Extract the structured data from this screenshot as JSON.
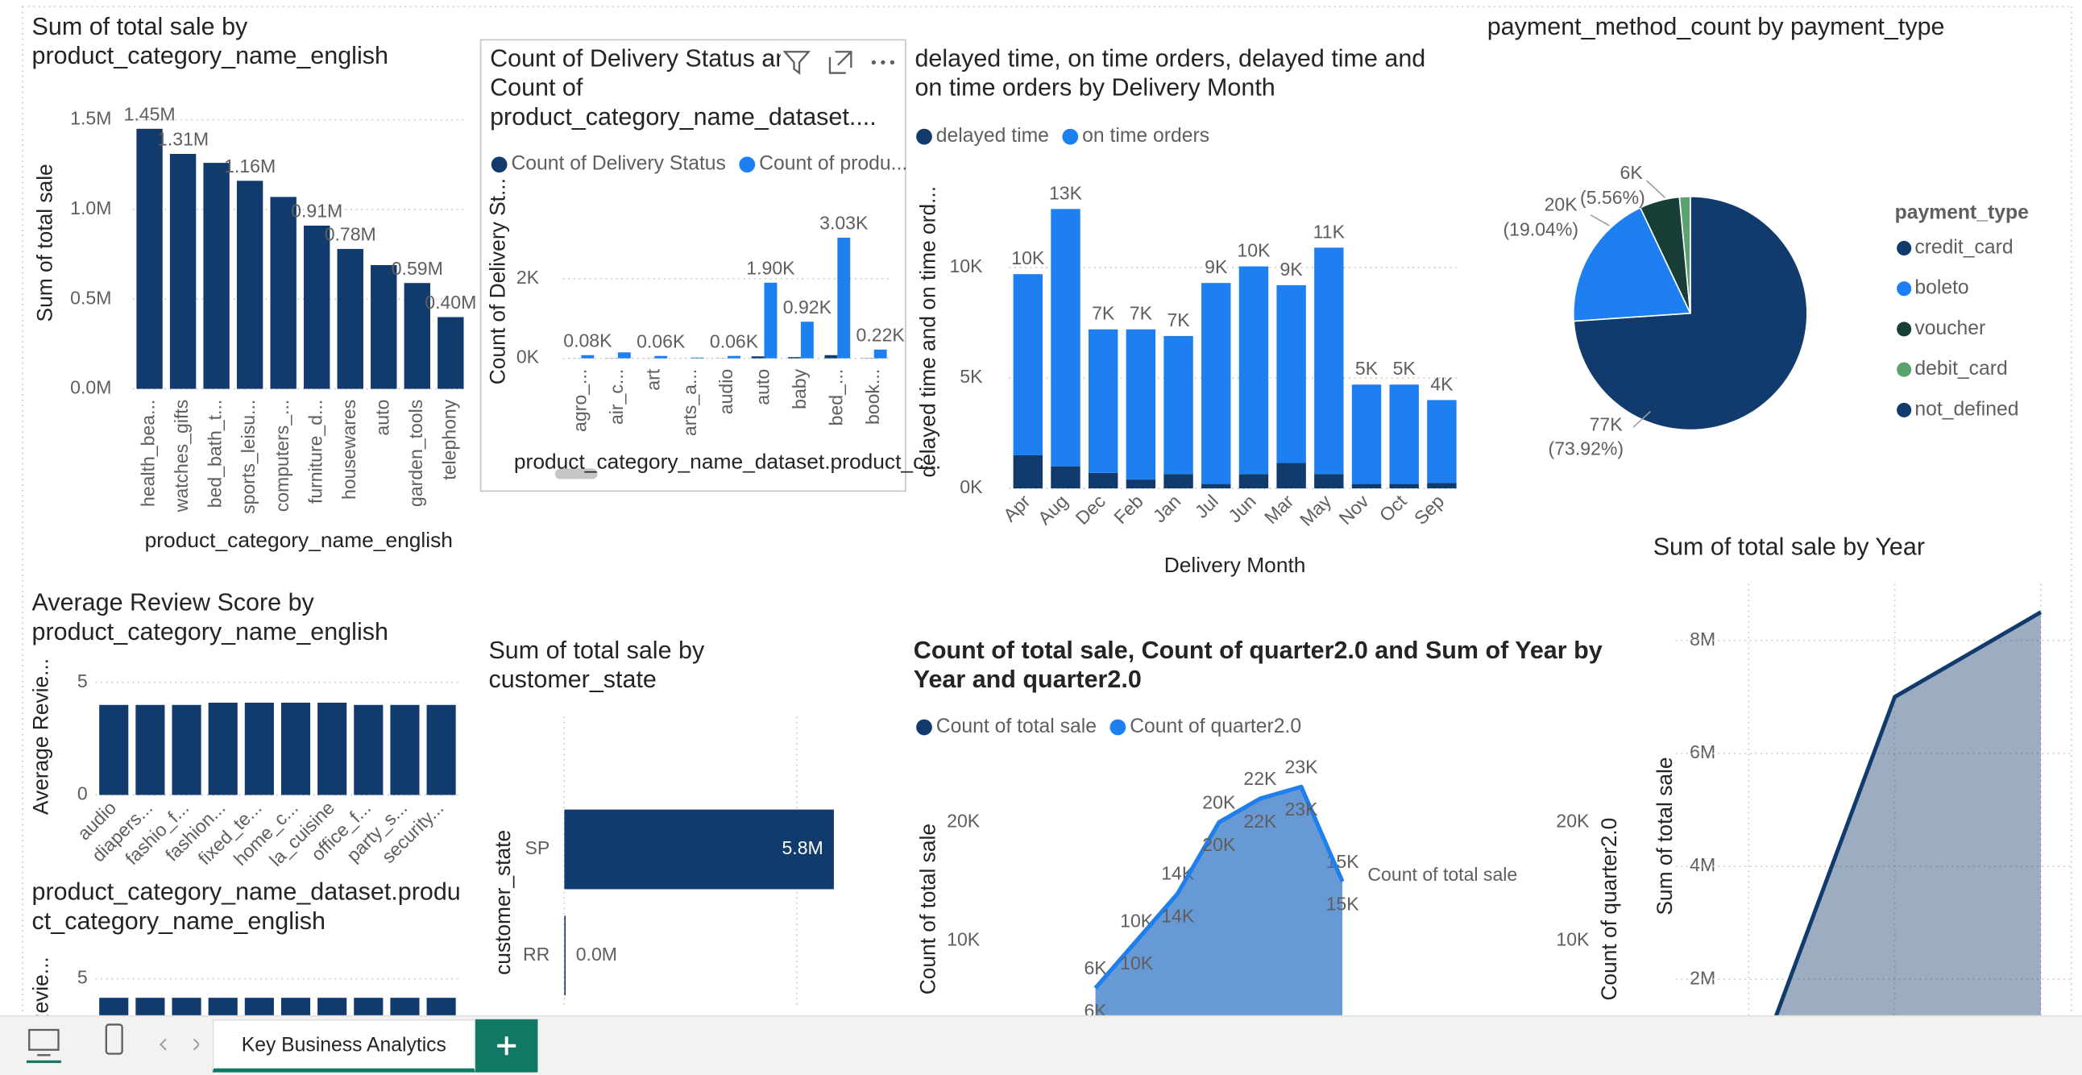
{
  "chart_data": [
    {
      "type": "bar",
      "title": "Sum of total sale by product_category_name_english",
      "y_label": "Sum of total sale",
      "x_label": "product_category_name_english",
      "categories": [
        "health_bea...",
        "watches_gifts",
        "bed_bath_t...",
        "sports_leisu...",
        "computers_...",
        "furniture_d...",
        "housewares",
        "auto",
        "garden_tools",
        "telephony"
      ],
      "values": [
        1450000,
        1310000,
        1260000,
        1160000,
        1070000,
        910000,
        780000,
        690000,
        590000,
        400000
      ],
      "value_labels": [
        "1.45M",
        "1.31M",
        null,
        "1.16M",
        null,
        "0.91M",
        "0.78M",
        null,
        "0.59M",
        "0.40M"
      ],
      "color": "#123b6d",
      "ylim": [
        0,
        1650000
      ],
      "yticks": [
        {
          "value": 0,
          "label": "0.0M"
        },
        {
          "value": 500000,
          "label": "0.5M"
        },
        {
          "value": 1000000,
          "label": "1.0M"
        },
        {
          "value": 1500000,
          "label": "1.5M"
        }
      ],
      "grid": true
    },
    {
      "type": "bar",
      "title": "Count of Delivery Status and Count of product_category_name_dataset....",
      "y_label": "Count of Delivery St...",
      "x_label": "product_category_name_dataset.product_c...",
      "categories": [
        "agro_...",
        "air_c...",
        "art",
        "arts_a...",
        "audio",
        "auto",
        "baby",
        "bed_...",
        "book..."
      ],
      "series": [
        {
          "name": "Count of Delivery Status",
          "color": "#123b6d",
          "values": [
            2,
            4,
            2,
            1,
            3,
            50,
            30,
            80,
            6
          ]
        },
        {
          "name": "Count of produ...",
          "color": "#1e80f0",
          "values": [
            80,
            150,
            60,
            20,
            60,
            1900,
            920,
            3030,
            220
          ],
          "value_labels": [
            "0.08K",
            null,
            "0.06K",
            null,
            "0.06K",
            "1.90K",
            "0.92K",
            "3.03K",
            "0.22K"
          ]
        }
      ],
      "ylim": [
        0,
        4000
      ],
      "yticks": [
        {
          "value": 0,
          "label": "0K"
        },
        {
          "value": 2000,
          "label": "2K"
        }
      ],
      "grid": true
    },
    {
      "type": "bar",
      "stacked": true,
      "title": "delayed time, on time orders, delayed time and on time orders by Delivery Month",
      "y_label": "delayed time and on time ord...",
      "x_label": "Delivery Month",
      "categories": [
        "Apr",
        "Aug",
        "Dec",
        "Feb",
        "Jan",
        "Jul",
        "Jun",
        "Mar",
        "May",
        "Nov",
        "Oct",
        "Sep"
      ],
      "series": [
        {
          "name": "delayed time",
          "color": "#123b6d",
          "values": [
            1500,
            1000,
            700,
            400,
            650,
            200,
            650,
            1150,
            650,
            200,
            200,
            250
          ]
        },
        {
          "name": "on time orders",
          "color": "#1e80f0",
          "values": [
            8200,
            11650,
            6500,
            6800,
            6250,
            9100,
            9400,
            8050,
            10250,
            4500,
            4500,
            3750
          ]
        }
      ],
      "total_labels": [
        "10K",
        "13K",
        "7K",
        "7K",
        "7K",
        "9K",
        "10K",
        "9K",
        "11K",
        "5K",
        "5K",
        "4K"
      ],
      "ylim": [
        0,
        13700
      ],
      "yticks": [
        {
          "value": 0,
          "label": "0K"
        },
        {
          "value": 5000,
          "label": "5K"
        },
        {
          "value": 10000,
          "label": "10K"
        }
      ],
      "grid": true
    },
    {
      "type": "pie",
      "title": "payment_method_count by payment_type",
      "legend_title": "payment_type",
      "legend": "right",
      "categories": [
        "credit_card",
        "boleto",
        "voucher",
        "debit_card",
        "not_defined"
      ],
      "values": [
        76877,
        19802,
        5782,
        1539,
        3
      ],
      "value_labels": [
        "77K",
        "20K",
        "6K",
        null,
        null
      ],
      "percent_labels": [
        "(73.92%)",
        "(19.04%)",
        "(5.56%)",
        null,
        null
      ],
      "colors": [
        "#123b6d",
        "#1e80f0",
        "#193e37",
        "#5aa36f",
        "#123b6d"
      ]
    },
    {
      "type": "bar",
      "title": "Average Review Score by product_category_name_english",
      "y_label": "Average Revie...",
      "categories": [
        "audio",
        "diapers...",
        "fashio_f...",
        "fashion...",
        "fixed_te...",
        "home_c...",
        "la_cuisine",
        "office_f...",
        "party_s...",
        "security..."
      ],
      "values": [
        4.0,
        4.0,
        4.0,
        4.1,
        4.1,
        4.1,
        4.1,
        4.0,
        4.0,
        4.0
      ],
      "color": "#123b6d",
      "ylim": [
        0,
        5.6
      ],
      "yticks": [
        0,
        5
      ],
      "grid": true
    },
    {
      "type": "bar",
      "title": "product_category_name_dataset.product_category_name_english",
      "y_label": "Revie...",
      "categories": [
        null,
        null,
        null,
        null,
        null,
        null,
        null,
        null,
        null,
        null
      ],
      "values": [
        4.1,
        4.1,
        4.1,
        4.1,
        4.1,
        4.1,
        4.1,
        4.1,
        4.1,
        4.1
      ],
      "color": "#123b6d",
      "ylim": [
        0,
        5.6
      ],
      "yticks": [
        0,
        5
      ],
      "grid": true
    },
    {
      "type": "bar",
      "horizontal": true,
      "title": "Sum of total sale by customer_state",
      "y_label": "customer_state",
      "categories": [
        "SP",
        "RR"
      ],
      "values": [
        5800000,
        20000
      ],
      "value_labels": [
        "5.8M",
        "0.0M"
      ],
      "color": "#123b6d",
      "xlim": [
        0,
        6000000
      ],
      "xticks": [
        0,
        5000000
      ],
      "grid": true
    },
    {
      "type": "area",
      "title": "Count of total sale, Count of quarter2.0 and Sum of Year by Year and quarter2.0",
      "y_label": "Count of total sale",
      "y2_label": "Count of quarter2.0",
      "categories": [
        null,
        null,
        null,
        null,
        null,
        null,
        null
      ],
      "series": [
        {
          "name": "Count of total sale",
          "color": "#123b6d",
          "values": [
            6000,
            10000,
            14000,
            20000,
            22000,
            23000,
            15000
          ],
          "value_labels": [
            "6K",
            "10K",
            "14K",
            "20K",
            "22K",
            "23K",
            "15K"
          ]
        },
        {
          "name": "Count of quarter2.0",
          "color": "#1e80f0",
          "axis": "y2",
          "values": [
            6000,
            10000,
            14000,
            20000,
            22000,
            23000,
            15000
          ],
          "value_labels": [
            "6K",
            "10K",
            "14K",
            "20K",
            "22K",
            "23K",
            "15K"
          ]
        }
      ],
      "ylim": [
        0,
        25000
      ],
      "yticks": [
        {
          "value": 10000,
          "label": "10K"
        },
        {
          "value": 20000,
          "label": "20K"
        }
      ],
      "y2lim": [
        0,
        25000
      ],
      "y2ticks": [
        {
          "value": 10000,
          "label": "10K"
        },
        {
          "value": 20000,
          "label": "20K"
        }
      ],
      "grid": false
    },
    {
      "type": "area",
      "title": "Sum of total sale by Year",
      "y_label": "Sum of total sale",
      "categories": [
        null,
        null,
        null
      ],
      "values": [
        50000,
        7000000,
        8500000
      ],
      "color": "#123b6d",
      "ylim": [
        0,
        9000000
      ],
      "yticks": [
        {
          "value": 2000000,
          "label": "2M"
        },
        {
          "value": 4000000,
          "label": "4M"
        },
        {
          "value": 6000000,
          "label": "6M"
        },
        {
          "value": 8000000,
          "label": "8M"
        }
      ],
      "grid": true
    }
  ],
  "page_tabs": {
    "active": "Key Business Analytics"
  }
}
